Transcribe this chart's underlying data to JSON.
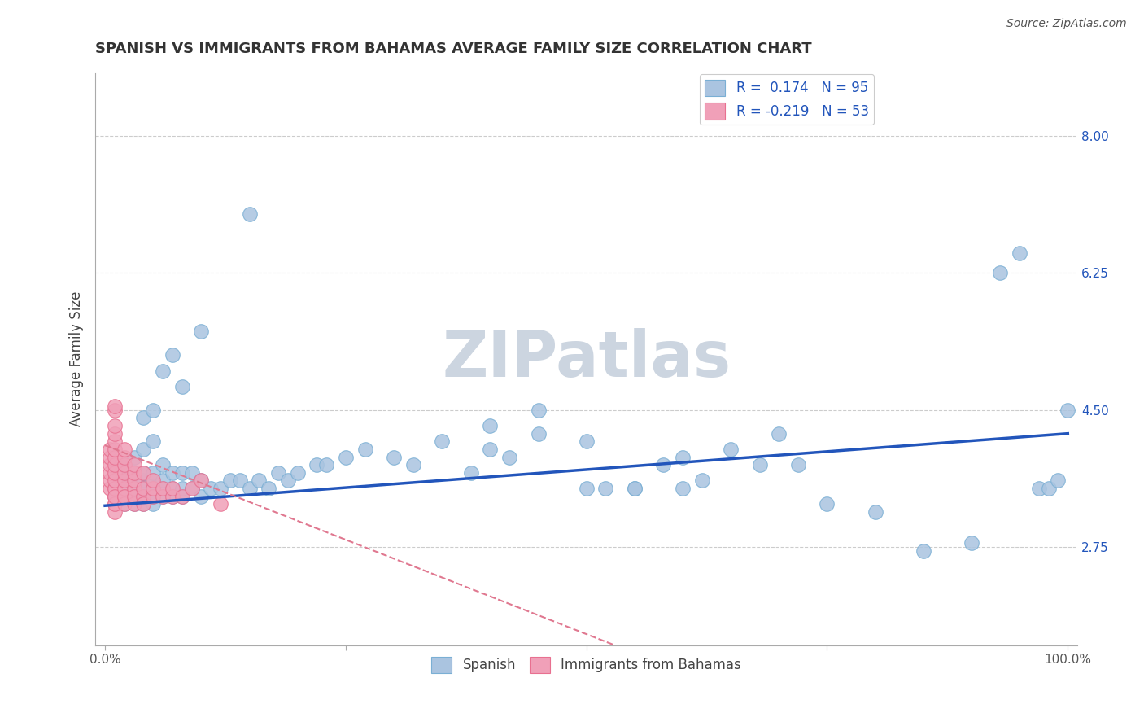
{
  "title": "SPANISH VS IMMIGRANTS FROM BAHAMAS AVERAGE FAMILY SIZE CORRELATION CHART",
  "source": "Source: ZipAtlas.com",
  "ylabel": "Average Family Size",
  "xlim": [
    -1.0,
    101.0
  ],
  "ylim": [
    1.5,
    8.8
  ],
  "yticks": [
    2.75,
    4.5,
    6.25,
    8.0
  ],
  "xticks": [
    0.0,
    25.0,
    50.0,
    75.0,
    100.0
  ],
  "xticklabels": [
    "0.0%",
    "",
    "",
    "",
    "100.0%"
  ],
  "background_color": "#ffffff",
  "grid_color": "#cccccc",
  "watermark": "ZIPatlas",
  "watermark_color": "#ccd5e0",
  "r_spanish": 0.174,
  "n_spanish": 95,
  "r_bahamas": -0.219,
  "n_bahamas": 53,
  "blue_color": "#aac4e0",
  "pink_color": "#f0a0b8",
  "blue_edge_color": "#7aafd4",
  "pink_edge_color": "#e87090",
  "blue_line_color": "#2255bb",
  "pink_line_color": "#e07890",
  "title_fontsize": 13,
  "legend_text_color": "#2255bb",
  "sp_line_x0": 0,
  "sp_line_x1": 100,
  "sp_line_y0": 3.28,
  "sp_line_y1": 4.2,
  "bh_line_x0": 0,
  "bh_line_x1": 55,
  "bh_line_y0": 4.05,
  "bh_line_y1": 1.4,
  "spanish_x": [
    1,
    1,
    1,
    2,
    2,
    2,
    2,
    3,
    3,
    3,
    3,
    3,
    3,
    3,
    4,
    4,
    4,
    4,
    4,
    4,
    4,
    4,
    5,
    5,
    5,
    5,
    5,
    5,
    5,
    5,
    6,
    6,
    6,
    6,
    6,
    7,
    7,
    7,
    7,
    8,
    8,
    8,
    8,
    9,
    9,
    10,
    10,
    10,
    11,
    12,
    13,
    14,
    15,
    15,
    16,
    17,
    18,
    19,
    20,
    22,
    23,
    25,
    27,
    30,
    32,
    35,
    38,
    40,
    42,
    45,
    50,
    52,
    55,
    58,
    60,
    62,
    65,
    68,
    70,
    72,
    75,
    80,
    85,
    90,
    93,
    95,
    97,
    98,
    99,
    100,
    40,
    45,
    50,
    55,
    60
  ],
  "spanish_y": [
    3.5,
    3.7,
    3.4,
    3.3,
    3.5,
    3.6,
    3.8,
    3.3,
    3.4,
    3.5,
    3.5,
    3.6,
    3.7,
    3.9,
    3.3,
    3.4,
    3.5,
    3.5,
    3.6,
    3.7,
    4.0,
    4.4,
    3.3,
    3.4,
    3.5,
    3.5,
    3.6,
    3.7,
    4.1,
    4.5,
    3.4,
    3.5,
    3.6,
    3.8,
    5.0,
    3.4,
    3.5,
    3.7,
    5.2,
    3.4,
    3.5,
    3.7,
    4.8,
    3.5,
    3.7,
    3.4,
    3.6,
    5.5,
    3.5,
    3.5,
    3.6,
    3.6,
    3.5,
    7.0,
    3.6,
    3.5,
    3.7,
    3.6,
    3.7,
    3.8,
    3.8,
    3.9,
    4.0,
    3.9,
    3.8,
    4.1,
    3.7,
    4.0,
    3.9,
    4.2,
    4.1,
    3.5,
    3.5,
    3.8,
    3.9,
    3.6,
    4.0,
    3.8,
    4.2,
    3.8,
    3.3,
    3.2,
    2.7,
    2.8,
    6.25,
    6.5,
    3.5,
    3.5,
    3.6,
    4.5,
    4.3,
    4.5,
    3.5,
    3.5,
    3.5
  ],
  "bahamas_x": [
    0.5,
    0.5,
    0.5,
    0.5,
    0.5,
    0.5,
    1,
    1,
    1,
    1,
    1,
    1,
    1,
    1,
    1,
    1,
    1,
    1,
    1,
    1,
    1,
    1,
    1,
    2,
    2,
    2,
    2,
    2,
    2,
    2,
    2,
    2,
    3,
    3,
    3,
    3,
    3,
    3,
    4,
    4,
    4,
    4,
    5,
    5,
    5,
    6,
    6,
    7,
    7,
    8,
    9,
    10,
    12
  ],
  "bahamas_y": [
    3.5,
    3.6,
    3.7,
    3.8,
    3.9,
    4.0,
    3.3,
    3.4,
    3.5,
    3.5,
    3.6,
    3.7,
    3.8,
    3.9,
    4.0,
    4.1,
    4.2,
    4.3,
    4.5,
    3.2,
    3.3,
    3.4,
    4.55,
    3.4,
    3.5,
    3.6,
    3.7,
    3.8,
    3.9,
    4.0,
    3.3,
    3.4,
    3.3,
    3.5,
    3.6,
    3.7,
    3.8,
    3.4,
    3.4,
    3.5,
    3.7,
    3.3,
    3.4,
    3.5,
    3.6,
    3.4,
    3.5,
    3.4,
    3.5,
    3.4,
    3.5,
    3.6,
    3.3
  ]
}
